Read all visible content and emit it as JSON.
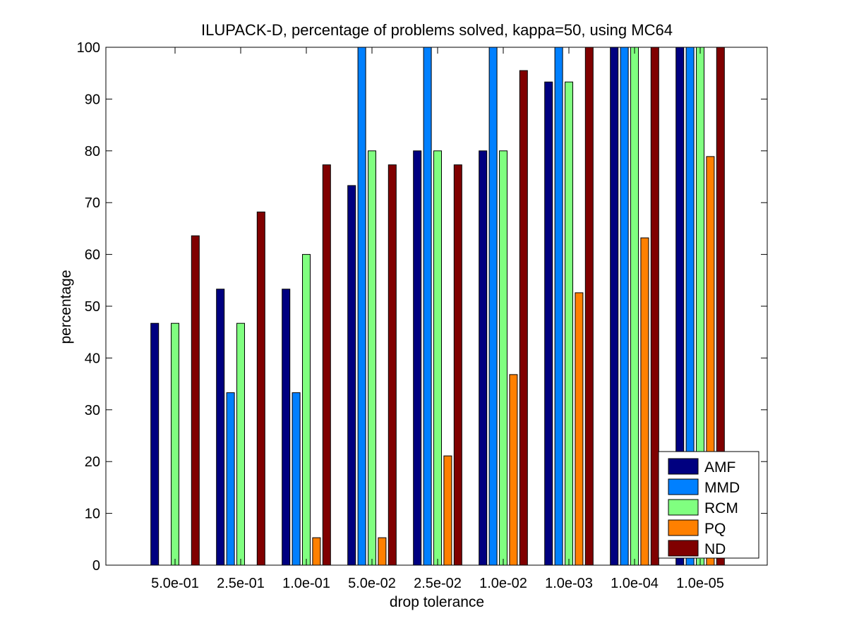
{
  "chart_data": {
    "type": "bar",
    "title": "ILUPACK-D, percentage of problems solved, kappa=50, using MC64",
    "xlabel": "drop tolerance",
    "ylabel": "percentage",
    "ylim": [
      0,
      100
    ],
    "yticks": [
      0,
      10,
      20,
      30,
      40,
      50,
      60,
      70,
      80,
      90,
      100
    ],
    "grid": false,
    "legend_position": "bottom-right",
    "categories": [
      "5.0e-01",
      "2.5e-01",
      "1.0e-01",
      "5.0e-02",
      "2.5e-02",
      "1.0e-02",
      "1.0e-03",
      "1.0e-04",
      "1.0e-05"
    ],
    "series": [
      {
        "name": "AMF",
        "color": "#000080",
        "values": [
          46.7,
          53.3,
          53.3,
          73.3,
          80.0,
          80.0,
          93.3,
          100,
          100
        ]
      },
      {
        "name": "MMD",
        "color": "#0080ff",
        "values": [
          0,
          33.3,
          33.3,
          100,
          100,
          100,
          100,
          100,
          100
        ]
      },
      {
        "name": "RCM",
        "color": "#80ff80",
        "values": [
          46.7,
          46.7,
          60.0,
          80.0,
          80.0,
          80.0,
          93.3,
          100,
          100
        ]
      },
      {
        "name": "PQ",
        "color": "#ff8000",
        "values": [
          0,
          0,
          5.3,
          5.3,
          21.1,
          36.8,
          52.6,
          63.2,
          78.9
        ]
      },
      {
        "name": "ND",
        "color": "#800000",
        "values": [
          63.6,
          68.2,
          77.3,
          77.3,
          77.3,
          95.5,
          100,
          100,
          100
        ]
      }
    ]
  }
}
